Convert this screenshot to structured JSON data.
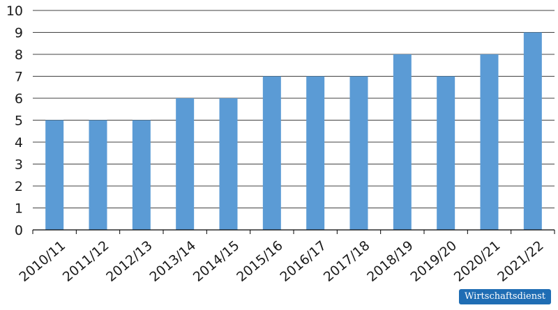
{
  "chart_data": {
    "type": "bar",
    "categories": [
      "2010/11",
      "2011/12",
      "2012/13",
      "2013/14",
      "2014/15",
      "2015/16",
      "2016/17",
      "2017/18",
      "2018/19",
      "2019/20",
      "2020/21",
      "2021/22"
    ],
    "values": [
      5,
      5,
      5,
      6,
      6,
      7,
      7,
      7,
      8,
      7,
      8,
      9
    ],
    "yticks": [
      0,
      1,
      2,
      3,
      4,
      5,
      6,
      7,
      8,
      9,
      10
    ],
    "ylim": [
      0,
      10
    ],
    "grid": true,
    "bar_color": "#5b9bd5",
    "grid_color": "#000000"
  },
  "badge": {
    "label": "Wirtschaftsdienst",
    "color": "#1f6db4"
  }
}
